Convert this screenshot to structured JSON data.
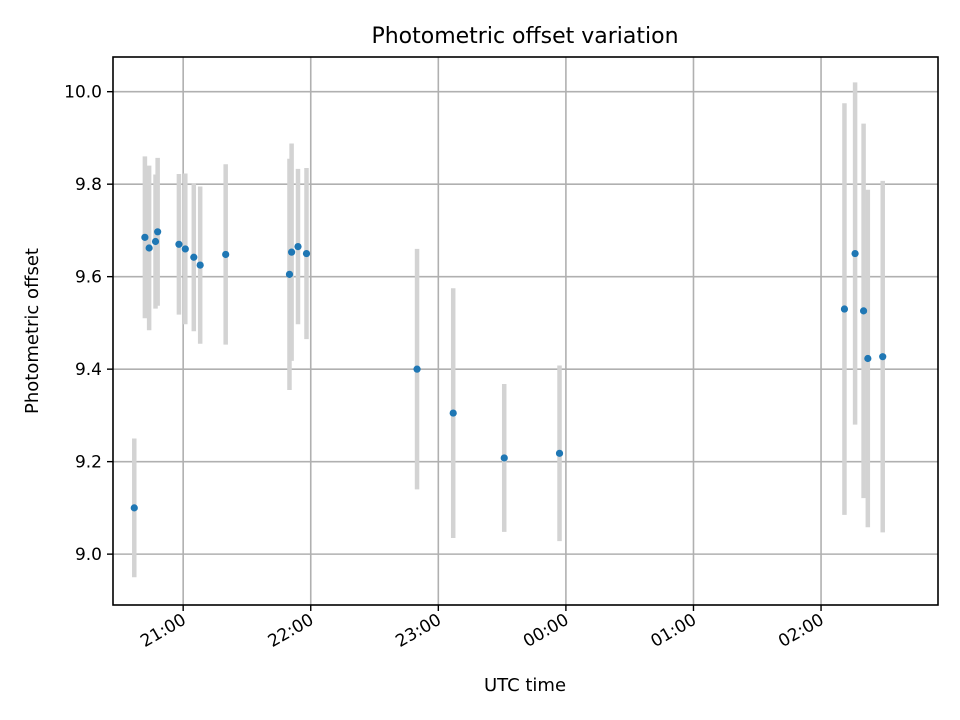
{
  "chart_data": {
    "type": "scatter",
    "title": "Photometric offset variation",
    "xlabel": "UTC time",
    "ylabel": "Photometric offset",
    "x_unit": "hours UTC (night spanning midnight, 24+ = next day)",
    "xlim": [
      "20:27",
      "02:55"
    ],
    "ylim": [
      8.89,
      10.075
    ],
    "x_ticks": [
      "21:00",
      "22:00",
      "23:00",
      "00:00",
      "01:00",
      "02:00"
    ],
    "y_ticks": [
      "9.0",
      "9.2",
      "9.4",
      "9.6",
      "9.8",
      "10.0"
    ],
    "grid": true,
    "colors": {
      "point": "#1f77b4",
      "errorbar": "#d3d3d3"
    },
    "points": [
      {
        "time": "20:37",
        "y": 9.1,
        "err": 0.15
      },
      {
        "time": "20:42",
        "y": 9.685,
        "err": 0.175
      },
      {
        "time": "20:44",
        "y": 9.662,
        "err": 0.178
      },
      {
        "time": "20:47",
        "y": 9.676,
        "err": 0.145
      },
      {
        "time": "20:48",
        "y": 9.697,
        "err": 0.16
      },
      {
        "time": "20:58",
        "y": 9.67,
        "err": 0.152
      },
      {
        "time": "21:01",
        "y": 9.66,
        "err": 0.163
      },
      {
        "time": "21:05",
        "y": 9.642,
        "err": 0.16
      },
      {
        "time": "21:08",
        "y": 9.625,
        "err": 0.17
      },
      {
        "time": "21:20",
        "y": 9.648,
        "err": 0.195
      },
      {
        "time": "21:50",
        "y": 9.605,
        "err": 0.25
      },
      {
        "time": "21:51",
        "y": 9.653,
        "err": 0.235
      },
      {
        "time": "21:54",
        "y": 9.665,
        "err": 0.168
      },
      {
        "time": "21:58",
        "y": 9.65,
        "err": 0.185
      },
      {
        "time": "22:50",
        "y": 9.4,
        "err": 0.26
      },
      {
        "time": "23:07",
        "y": 9.305,
        "err": 0.27
      },
      {
        "time": "23:31",
        "y": 9.208,
        "err": 0.16
      },
      {
        "time": "23:57",
        "y": 9.218,
        "err": 0.19
      },
      {
        "time": "02:11",
        "y": 9.53,
        "err": 0.445
      },
      {
        "time": "02:16",
        "y": 9.65,
        "err": 0.37
      },
      {
        "time": "02:20",
        "y": 9.526,
        "err": 0.405
      },
      {
        "time": "02:22",
        "y": 9.423,
        "err": 0.365
      },
      {
        "time": "02:29",
        "y": 9.427,
        "err": 0.38
      }
    ]
  }
}
